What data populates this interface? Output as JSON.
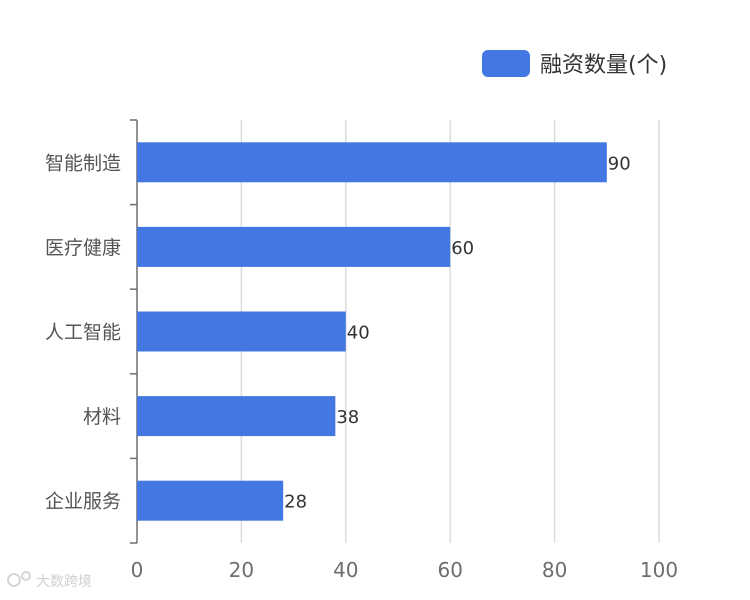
{
  "chart_data": {
    "type": "bar",
    "orientation": "horizontal",
    "categories": [
      "智能制造",
      "医疗健康",
      "人工智能",
      "材料",
      "企业服务"
    ],
    "series": [
      {
        "name": "融资数量(个)",
        "values": [
          90,
          60,
          40,
          38,
          28
        ],
        "color": "#4378e2"
      }
    ],
    "xlim": [
      0,
      100
    ],
    "xticks": [
      0,
      20,
      40,
      60,
      80,
      100
    ],
    "grid": true,
    "legend_position": "top-right",
    "data_labels": true
  },
  "watermark": {
    "text": "大数跨境"
  }
}
